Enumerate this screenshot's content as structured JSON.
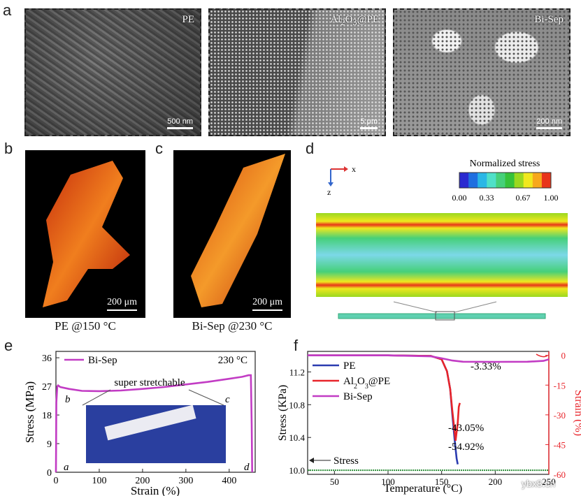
{
  "panel_labels": {
    "a": "a",
    "b": "b",
    "c": "c",
    "d": "d",
    "e": "e",
    "f": "f"
  },
  "sem": [
    {
      "tag": "PE",
      "scale": "500 nm"
    },
    {
      "tag": "Al2O3@PE",
      "scale": "5 μm"
    },
    {
      "tag": "Bi-Sep",
      "scale": "200 nm"
    }
  ],
  "images_3d": [
    {
      "scale": "200 μm",
      "caption": "PE @150 °C"
    },
    {
      "scale": "200 μm",
      "caption": "Bi-Sep @230 °C"
    }
  ],
  "stress_sim": {
    "legend_title": "Normalized stress",
    "ticks": [
      "0.00",
      "0.33",
      "0.67",
      "1.00"
    ],
    "axis_x": "x",
    "axis_z": "z",
    "colors": [
      "#2a2ad0",
      "#1f6fe0",
      "#2ab7e6",
      "#4fe0c8",
      "#46d07a",
      "#36c23a",
      "#9ad820",
      "#f0e81e",
      "#f7a81c",
      "#e8341a"
    ]
  },
  "chart_data": [
    {
      "type": "line",
      "panel": "e",
      "xlabel": "Strain (%)",
      "ylabel": "Stress (MPa)",
      "xlim": [
        0,
        460
      ],
      "ylim": [
        0,
        38
      ],
      "xticks": [
        "0",
        "100",
        "200",
        "300",
        "400"
      ],
      "yticks": [
        "0",
        "9",
        "18",
        "27",
        "36"
      ],
      "legend": "Bi-Sep",
      "series": [
        {
          "name": "Bi-Sep",
          "color": "#c23cc4",
          "x": [
            0,
            0.5,
            1,
            3,
            5,
            10,
            30,
            60,
            100,
            150,
            200,
            250,
            300,
            350,
            400,
            430,
            445,
            450,
            452,
            453
          ],
          "y": [
            0,
            10,
            22,
            27,
            27.3,
            26.8,
            26.2,
            25.6,
            25.5,
            25.7,
            26.2,
            26.8,
            27.6,
            28.4,
            29.4,
            30,
            30.5,
            30.5,
            15,
            0
          ]
        }
      ],
      "annotations": {
        "temp": "230 °C",
        "note": "super stretchable",
        "points": [
          "a",
          "b",
          "c",
          "d"
        ]
      }
    },
    {
      "type": "line",
      "panel": "f",
      "xlabel": "Temperature (°C)",
      "ylabel": "Stress (KPa)",
      "ylabel_right": "Strain (%)",
      "xlim": [
        25,
        250
      ],
      "ylim": [
        9.95,
        11.45
      ],
      "ylim_right": [
        -60,
        2
      ],
      "xticks": [
        "50",
        "100",
        "150",
        "200",
        "250"
      ],
      "yticks": [
        "10.0",
        "10.4",
        "10.8",
        "11.2"
      ],
      "yticks_right": [
        "0",
        "-15",
        "-30",
        "-45",
        "-60"
      ],
      "series": [
        {
          "name": "PE",
          "color": "#2a3bb0",
          "axis": "right",
          "x": [
            25,
            100,
            140,
            150,
            155,
            158,
            160,
            162,
            164,
            165
          ],
          "y": [
            0,
            0,
            -0.3,
            -2,
            -8,
            -17,
            -30,
            -42,
            -52,
            -54.92
          ]
        },
        {
          "name": "Al2O3@PE",
          "color": "#e8242a",
          "axis": "right",
          "x": [
            25,
            100,
            140,
            150,
            155,
            158,
            160,
            162,
            163,
            165,
            166,
            167
          ],
          "y": [
            0,
            0,
            -0.3,
            -2,
            -8,
            -17,
            -28,
            -38,
            -43.05,
            -34,
            -26,
            -24
          ]
        },
        {
          "name": "Bi-Sep",
          "color": "#c23cc4",
          "axis": "right",
          "x": [
            25,
            100,
            140,
            150,
            160,
            170,
            200,
            230,
            245,
            250
          ],
          "y": [
            0,
            0,
            -0.5,
            -1.5,
            -2.6,
            -3.2,
            -3.3,
            -3.2,
            -2.8,
            -2
          ]
        }
      ],
      "stress_series": {
        "name": "Stress",
        "color": "#2f8f3a",
        "value": 10.0
      },
      "labels": [
        "-3.33%",
        "-43.05%",
        "-54.92%"
      ],
      "stress_label": "Stress"
    }
  ],
  "watermark": "ybx8.cn"
}
